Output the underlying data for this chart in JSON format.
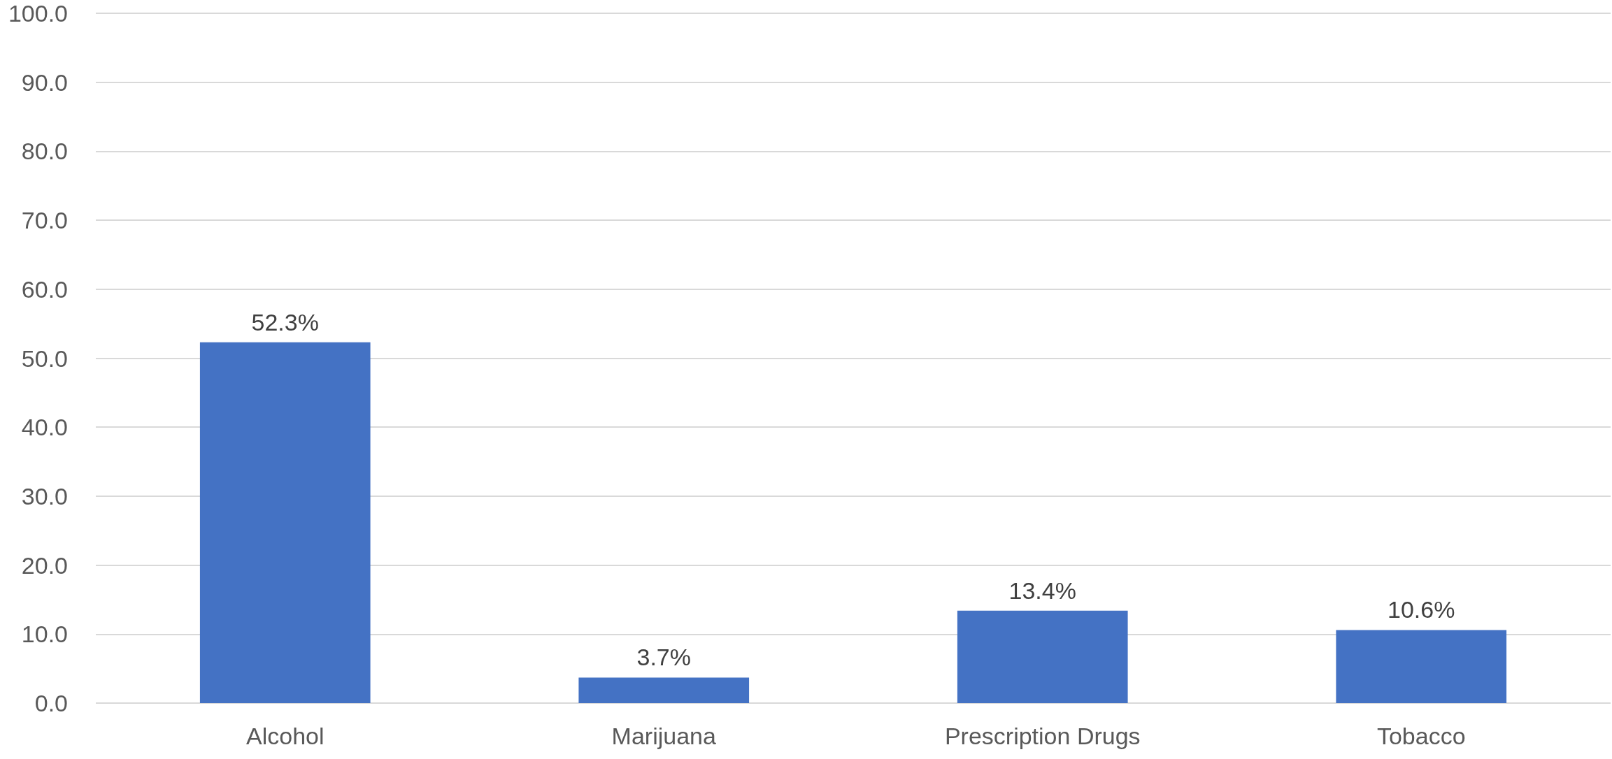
{
  "chart_data": {
    "type": "bar",
    "categories": [
      "Alcohol",
      "Marijuana",
      "Prescription Drugs",
      "Tobacco"
    ],
    "series": [
      {
        "color": "#4472c4",
        "values": [
          52.3,
          3.7,
          13.4,
          10.6
        ],
        "value_labels": [
          "52.3%",
          "3.7%",
          "13.4%",
          "10.6%"
        ]
      }
    ],
    "ylim": [
      0,
      100
    ],
    "yticks": [
      {
        "value": 0,
        "label": "0.0"
      },
      {
        "value": 10,
        "label": "10.0"
      },
      {
        "value": 20,
        "label": "20.0"
      },
      {
        "value": 30,
        "label": "30.0"
      },
      {
        "value": 40,
        "label": "40.0"
      },
      {
        "value": 50,
        "label": "50.0"
      },
      {
        "value": 60,
        "label": "60.0"
      },
      {
        "value": 70,
        "label": "70.0"
      },
      {
        "value": 80,
        "label": "80.0"
      },
      {
        "value": 90,
        "label": "90.0"
      },
      {
        "value": 100,
        "label": "100.0"
      }
    ],
    "grid": "y"
  }
}
